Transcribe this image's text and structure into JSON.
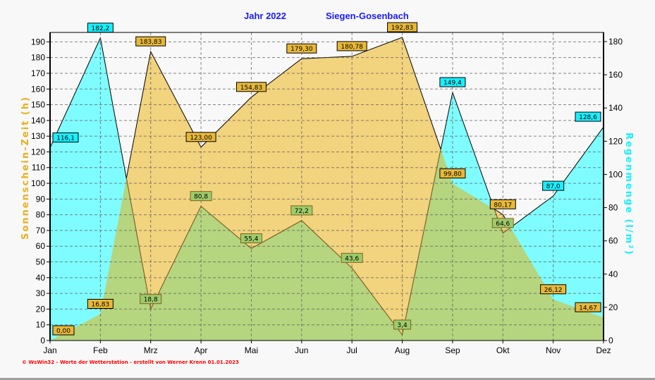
{
  "chart_data": {
    "type": "area",
    "title": "Jahr  2022",
    "subtitle": "Siegen-Gosenbach",
    "categories": [
      "Jan",
      "Feb",
      "Mrz",
      "Apr",
      "Mai",
      "Jun",
      "Jul",
      "Aug",
      "Sep",
      "Okt",
      "Nov",
      "Dez"
    ],
    "series": [
      {
        "name": "Sonnenschein-Zeit",
        "axis": "left",
        "color": "#f2d37e",
        "label_color": "#e8b838",
        "values": [
          0.0,
          16.83,
          183.83,
          123.0,
          154.83,
          179.3,
          180.78,
          192.83,
          99.8,
          80.17,
          26.12,
          14.67
        ],
        "labels": [
          "0,00",
          "16,83",
          "183,83",
          "123,00",
          "154,83",
          "179,30",
          "180,78",
          "192,83",
          "99,80",
          "80,17",
          "26,12",
          "14,67"
        ]
      },
      {
        "name": "Regenmenge",
        "axis": "right",
        "color": "#7ffcff",
        "label_color": "#18f0ff",
        "values": [
          116.1,
          182.2,
          18.8,
          80.8,
          55.4,
          72.2,
          43.6,
          3.4,
          149.4,
          64.6,
          87.0,
          128.6
        ],
        "labels": [
          "116,1",
          "182,2",
          "18,8",
          "80,8",
          "55,4",
          "72,2",
          "43,6",
          "3,4",
          "149,4",
          "64,6",
          "87,0",
          "128,6"
        ]
      }
    ],
    "overlap_color": "#b5d57f",
    "ylabel": "Sonnenschein-Zeit  (h)",
    "ylabel_color": "#e8b020",
    "y2label": "Regenmenge  (l/m²)",
    "y2label_color": "#18f0ff",
    "ylim": [
      0,
      196
    ],
    "y2lim": [
      0,
      185.5
    ],
    "yticks": [
      0,
      10,
      20,
      30,
      40,
      50,
      60,
      70,
      80,
      90,
      100,
      110,
      120,
      130,
      140,
      150,
      160,
      170,
      180,
      190
    ],
    "y2ticks": [
      0,
      20,
      40,
      60,
      80,
      100,
      120,
      140,
      160,
      180
    ],
    "grid": true
  },
  "footer": "© WsWin32  -  Werte der Wetterstation  -  erstellt von Werner Krenn   01.01.2023"
}
